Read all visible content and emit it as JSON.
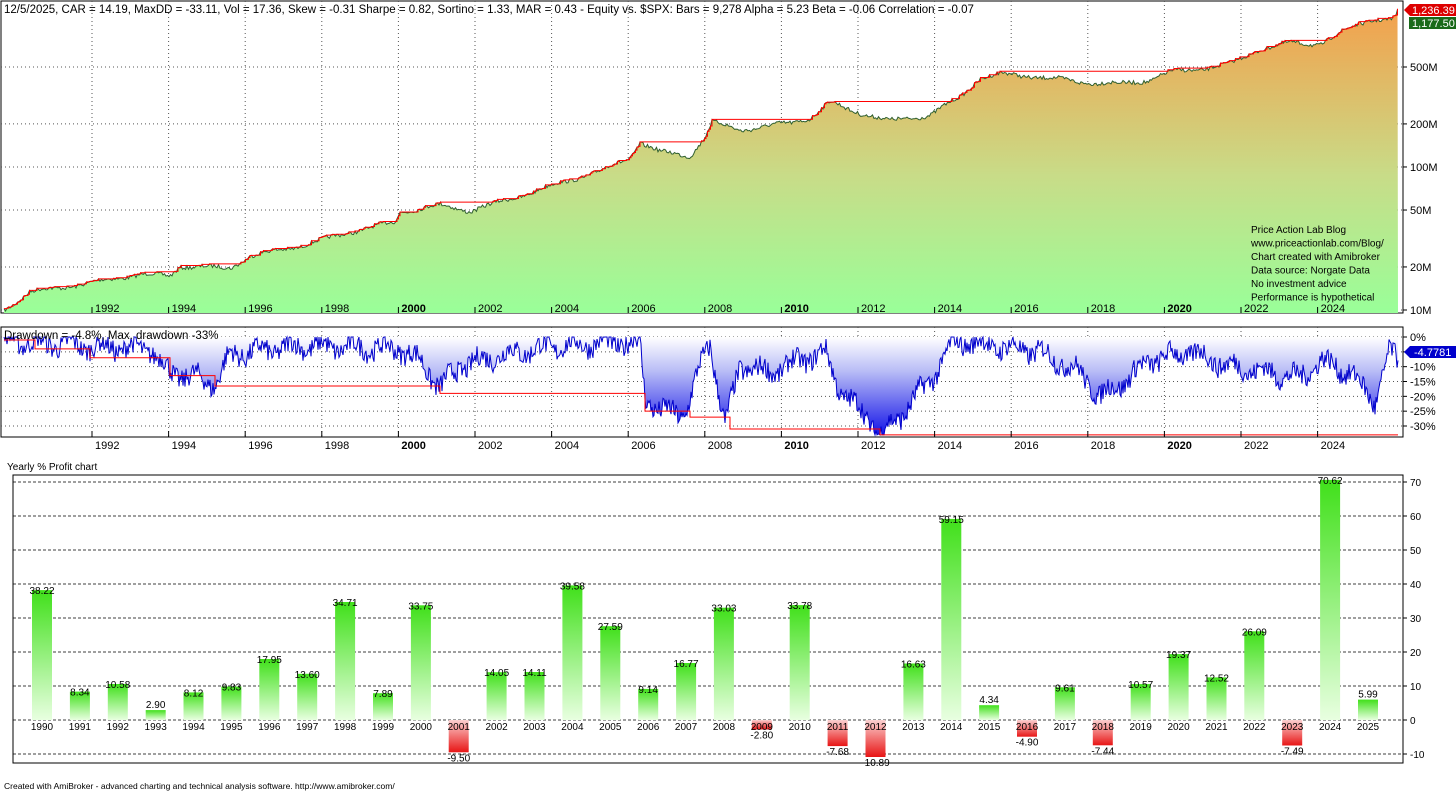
{
  "header": {
    "stats_line": "12/5/2025, CAR = 14.19, MaxDD = -33.11, Vol = 17.36, Skew = -0.31 Sharpe = 0.82, Sortino = 1.33, MAR = 0.43 - Equity vs. $SPX:  Bars = 9,278 Alpha = 5.23 Beta = -0.06 Correlation = -0.07",
    "last_price_red": "1,236.39",
    "last_price_green": "1,177.50"
  },
  "equity_panel": {
    "yticks": [
      "500M",
      "200M",
      "100M",
      "50M",
      "20M",
      "10M"
    ],
    "info_lines": [
      "Price Action Lab Blog",
      "www.priceactionlab.com/Blog/",
      "Chart created with Amibroker",
      "Data source: Norgate Data",
      "No investment advice",
      "Performance is hypothetical"
    ]
  },
  "x_axis_years": [
    "1992",
    "1994",
    "1996",
    "1998",
    "2000",
    "2002",
    "2004",
    "2006",
    "2008",
    "2010",
    "2012",
    "2014",
    "2016",
    "2018",
    "2020",
    "2022",
    "2024"
  ],
  "bold_years": [
    "2000",
    "2010",
    "2020"
  ],
  "drawdown_panel": {
    "title": "Drawdown = -4.8%, Max. drawdown -33%",
    "yticks": [
      "0%",
      "-5%",
      "-10%",
      "-15%",
      "-20%",
      "-25%",
      "-30%"
    ],
    "last_value": "-4.7781"
  },
  "chart_data": {
    "type": "bar",
    "title": "Yearly % Profit chart",
    "categories": [
      "1990",
      "1991",
      "1992",
      "1993",
      "1994",
      "1995",
      "1996",
      "1997",
      "1998",
      "1999",
      "2000",
      "2001",
      "2002",
      "2003",
      "2004",
      "2005",
      "2006",
      "2007",
      "2008",
      "2009",
      "2010",
      "2011",
      "2012",
      "2013",
      "2014",
      "2015",
      "2016",
      "2017",
      "2018",
      "2019",
      "2020",
      "2021",
      "2022",
      "2023",
      "2024",
      "2025"
    ],
    "values": [
      38.22,
      8.34,
      10.58,
      2.9,
      8.12,
      9.83,
      17.95,
      13.6,
      34.71,
      7.89,
      33.75,
      -9.5,
      14.05,
      14.11,
      39.58,
      27.59,
      9.14,
      16.77,
      33.03,
      -2.8,
      33.78,
      -7.68,
      -10.89,
      16.63,
      59.15,
      4.34,
      -4.9,
      9.61,
      -7.44,
      10.57,
      19.37,
      12.52,
      26.09,
      -7.49,
      70.62,
      5.99
    ],
    "value_labels": [
      "38.22",
      "8.34",
      "10.58",
      "2.90",
      "8.12",
      "9.83",
      "17.95",
      "13.60",
      "34.71",
      "7.89",
      "33.75",
      "-9.50",
      "14.05",
      "14.11",
      "39.58",
      "27.59",
      "9.14",
      "16.77",
      "33.03",
      "-2.80",
      "33.78",
      "-7.68",
      "-10.89",
      "16.63",
      "59.15",
      "4.34",
      "-4.90",
      "9.61",
      "-7.44",
      "10.57",
      "19.37",
      "12.52",
      "26.09",
      "-7.49",
      "70.62",
      "5.99"
    ],
    "ylim": [
      -10,
      70
    ],
    "yticks": [
      "70",
      "60",
      "50",
      "40",
      "30",
      "20",
      "10",
      "0",
      "-10"
    ],
    "grid": true,
    "colors": {
      "positive": "#44dd22",
      "negative": "#ee2222"
    }
  },
  "footer": "Created with AmiBroker - advanced charting and technical analysis software. http://www.amibroker.com/",
  "colors": {
    "equity_top": "#f0a050",
    "equity_bottom": "#99ff99",
    "equity_line": "#336633",
    "highwater_line": "#ff0000",
    "drawdown_line": "#0000cc",
    "drawdown_fill_top": "#ffffff",
    "drawdown_fill_bottom": "#1a1aee"
  }
}
